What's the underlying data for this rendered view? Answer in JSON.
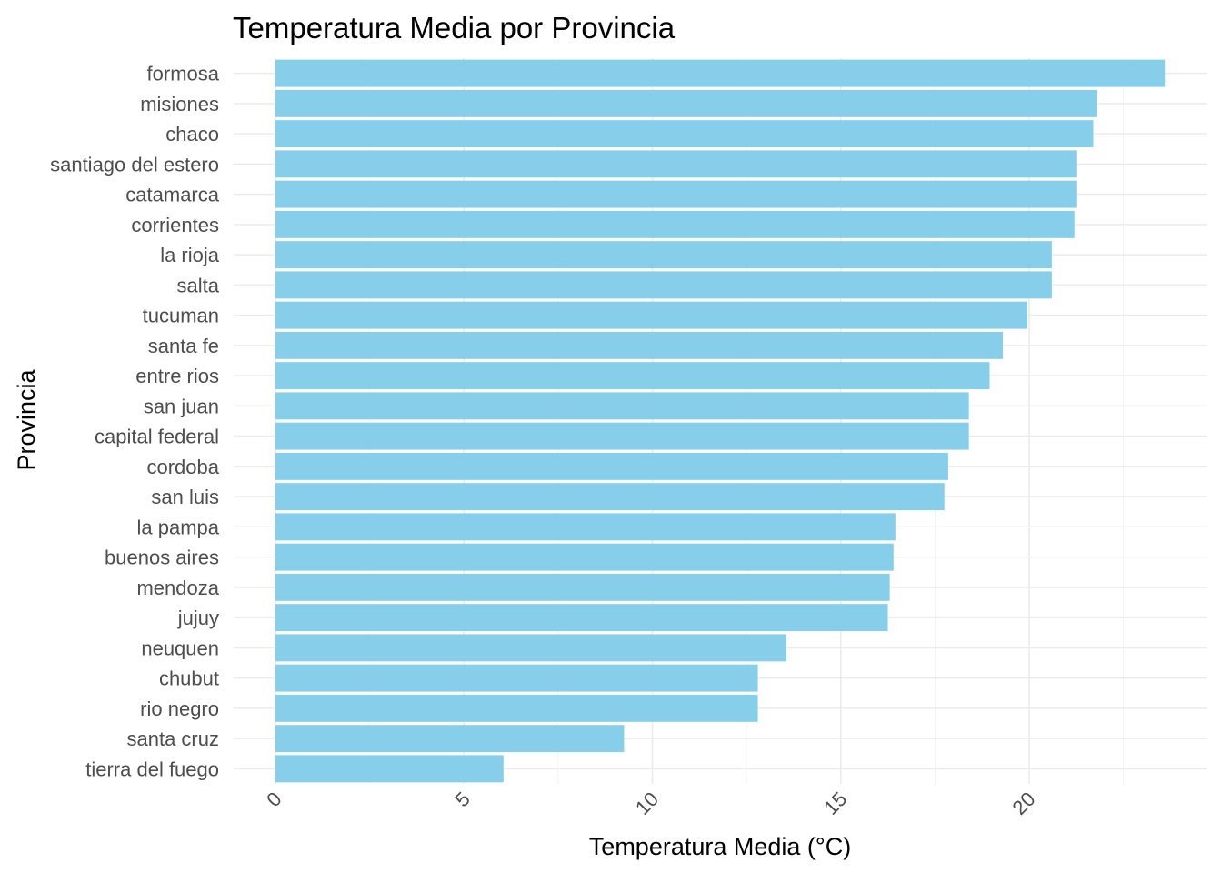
{
  "chart_data": {
    "type": "bar",
    "orientation": "horizontal",
    "title": "Temperatura Media por Provincia",
    "xlabel": "Temperatura Media (°C)",
    "ylabel": "Provincia",
    "xlim": [
      0,
      24.5
    ],
    "x_ticks": [
      "0",
      "5",
      "10",
      "15",
      "20"
    ],
    "x_tick_rotation": -45,
    "grid": true,
    "bar_color": "#87CEEB",
    "categories": [
      "formosa",
      "misiones",
      "chaco",
      "santiago del estero",
      "catamarca",
      "corrientes",
      "la rioja",
      "salta",
      "tucuman",
      "santa fe",
      "entre rios",
      "san juan",
      "capital federal",
      "cordoba",
      "san luis",
      "la pampa",
      "buenos aires",
      "mendoza",
      "jujuy",
      "neuquen",
      "chubut",
      "rio negro",
      "santa cruz",
      "tierra del fuego"
    ],
    "values": [
      23.6,
      21.8,
      21.7,
      21.25,
      21.25,
      21.2,
      20.6,
      20.6,
      19.95,
      19.3,
      18.95,
      18.4,
      18.4,
      17.85,
      17.75,
      16.45,
      16.4,
      16.3,
      16.25,
      13.55,
      12.8,
      12.8,
      9.25,
      6.05
    ]
  }
}
